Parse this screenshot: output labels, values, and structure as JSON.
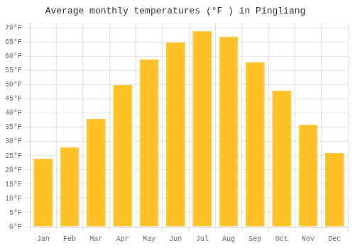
{
  "chart_data": {
    "type": "bar",
    "title": "Average monthly temperatures (°F ) in Pingliang",
    "categories": [
      "Jan",
      "Feb",
      "Mar",
      "Apr",
      "May",
      "Jun",
      "Jul",
      "Aug",
      "Sep",
      "Oct",
      "Nov",
      "Dec"
    ],
    "values": [
      24,
      28,
      38,
      50,
      59,
      65,
      69,
      67,
      58,
      48,
      36,
      26
    ],
    "color": "#FFC125",
    "ylim": [
      0,
      72
    ],
    "yticks": [
      {
        "value": 0,
        "label": "0°F"
      },
      {
        "value": 5,
        "label": "5°F"
      },
      {
        "value": 10,
        "label": "10°F"
      },
      {
        "value": 15,
        "label": "15°F"
      },
      {
        "value": 20,
        "label": "20°F"
      },
      {
        "value": 25,
        "label": "25°F"
      },
      {
        "value": 30,
        "label": "30°F"
      },
      {
        "value": 35,
        "label": "35°F"
      },
      {
        "value": 40,
        "label": "40°F"
      },
      {
        "value": 45,
        "label": "45°F"
      },
      {
        "value": 50,
        "label": "50°F"
      },
      {
        "value": 55,
        "label": "55°F"
      },
      {
        "value": 60,
        "label": "60°F"
      },
      {
        "value": 65,
        "label": "65°F"
      },
      {
        "value": 70,
        "label": "70°F"
      }
    ],
    "grid": true
  }
}
